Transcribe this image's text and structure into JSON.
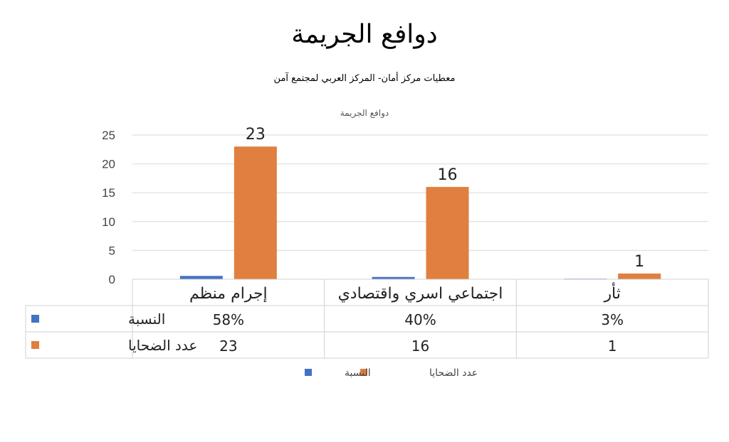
{
  "chart_data": {
    "type": "bar",
    "title": "دوافع الجريمة",
    "subtitle": "معطيات مركز أمان- المركز العربي لمجتمع آمن",
    "inner_title": "دوافع الجريمة",
    "categories": [
      "إجرام منظم",
      "اجتماعي اسري واقتصادي",
      "ثأر"
    ],
    "series": [
      {
        "name": "النسبة",
        "color": "#4472C4",
        "values": [
          0.58,
          0.4,
          0.03
        ],
        "labels": [
          "58%",
          "40%",
          "3%"
        ]
      },
      {
        "name": "عدد الضحايا",
        "color": "#E07F3F",
        "values": [
          23,
          16,
          1
        ],
        "labels": [
          "23",
          "16",
          "1"
        ]
      }
    ],
    "y_ticks": [
      "0",
      "5",
      "10",
      "15",
      "20",
      "25"
    ],
    "ylim": [
      0,
      25
    ],
    "grid": true,
    "legend_position": "bottom"
  }
}
